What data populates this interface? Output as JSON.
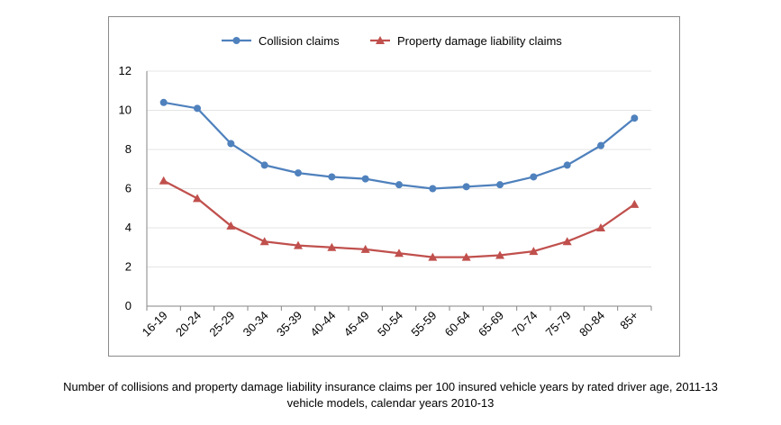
{
  "chart_data": {
    "type": "line",
    "categories": [
      "16-19",
      "20-24",
      "25-29",
      "30-34",
      "35-39",
      "40-44",
      "45-49",
      "50-54",
      "55-59",
      "60-64",
      "65-69",
      "70-74",
      "75-79",
      "80-84",
      "85+"
    ],
    "series": [
      {
        "name": "Collision claims",
        "marker": "circle",
        "color": "#4F81BD",
        "values": [
          10.4,
          10.1,
          8.3,
          7.2,
          6.8,
          6.6,
          6.5,
          6.2,
          6.0,
          6.1,
          6.2,
          6.6,
          7.2,
          8.2,
          9.6
        ]
      },
      {
        "name": "Property damage liability claims",
        "marker": "triangle",
        "color": "#C0504D",
        "values": [
          6.4,
          5.5,
          4.1,
          3.3,
          3.1,
          3.0,
          2.9,
          2.7,
          2.5,
          2.5,
          2.6,
          2.8,
          3.3,
          4.0,
          5.2
        ]
      }
    ],
    "ylim": [
      0,
      12
    ],
    "yticks": [
      0,
      2,
      4,
      6,
      8,
      10,
      12
    ],
    "grid": true,
    "legend": "top-center",
    "xlabel": "",
    "ylabel": "",
    "title": ""
  },
  "caption": {
    "line1": "Number of collisions and property damage liability insurance claims per 100 insured vehicle years by rated driver age, 2011-13",
    "line2": "vehicle models, calendar years 2010-13"
  }
}
